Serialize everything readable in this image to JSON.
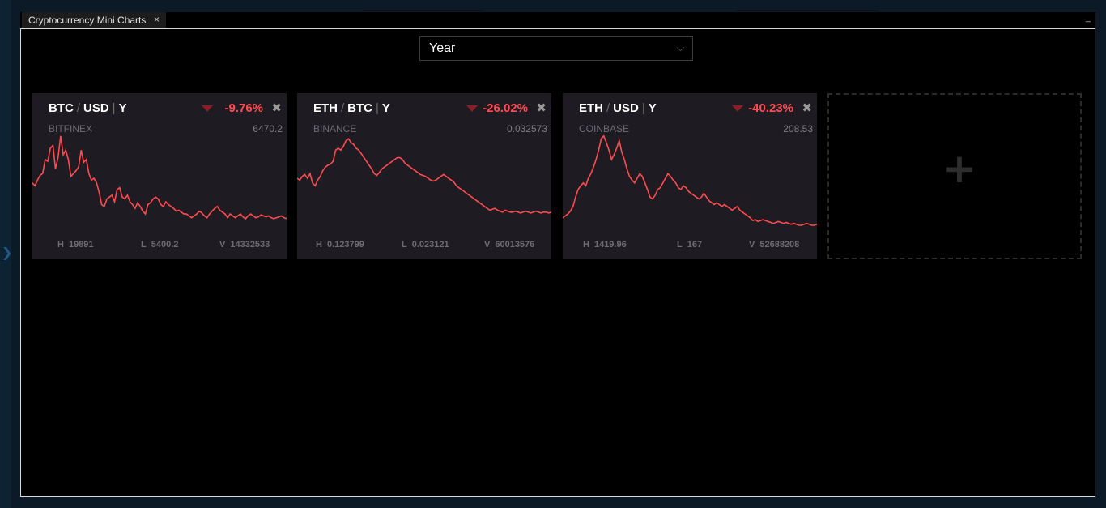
{
  "window": {
    "tab_title": "Cryptocurrency Mini Charts",
    "tab_close": "×",
    "minimize": "_"
  },
  "period": {
    "selected": "Year",
    "chevron": "⌵"
  },
  "cards": [
    {
      "base": "BTC",
      "sep": "/",
      "quote": "USD",
      "period_sep": "|",
      "period": "Y",
      "change": "-9.76%",
      "exchange": "BITFINEX",
      "price": "6470.2",
      "stats": [
        {
          "label": "H",
          "value": "19891"
        },
        {
          "label": "L",
          "value": "5400.2"
        },
        {
          "label": "V",
          "value": "14332533"
        }
      ],
      "series": [
        55,
        58,
        52,
        47,
        45,
        30,
        32,
        18,
        15,
        40,
        28,
        5,
        25,
        20,
        30,
        48,
        45,
        42,
        38,
        20,
        33,
        30,
        45,
        52,
        50,
        55,
        65,
        78,
        80,
        72,
        70,
        68,
        75,
        62,
        60,
        70,
        72,
        68,
        75,
        78,
        82,
        76,
        80,
        85,
        88,
        78,
        76,
        72,
        70,
        72,
        78,
        80,
        75,
        78,
        80,
        82,
        85,
        84,
        86,
        88,
        88,
        90,
        92,
        90,
        88,
        85,
        87,
        90,
        92,
        88,
        85,
        82,
        80,
        84,
        86,
        88,
        92,
        88,
        90,
        92,
        90,
        88,
        91,
        93,
        90,
        88,
        90,
        92,
        91,
        89,
        90,
        91,
        90,
        92,
        93,
        92,
        91,
        90,
        92,
        93
      ]
    },
    {
      "base": "ETH",
      "sep": "/",
      "quote": "BTC",
      "period_sep": "|",
      "period": "Y",
      "change": "-26.02%",
      "exchange": "BINANCE",
      "price": "0.032573",
      "stats": [
        {
          "label": "H",
          "value": "0.123799"
        },
        {
          "label": "L",
          "value": "0.023121"
        },
        {
          "label": "V",
          "value": "60013576"
        }
      ],
      "series": [
        50,
        52,
        48,
        46,
        50,
        45,
        55,
        58,
        52,
        48,
        42,
        38,
        36,
        35,
        32,
        20,
        18,
        20,
        16,
        10,
        8,
        12,
        14,
        18,
        20,
        24,
        28,
        32,
        36,
        40,
        45,
        47,
        44,
        40,
        38,
        36,
        34,
        32,
        30,
        28,
        28,
        30,
        34,
        36,
        38,
        40,
        42,
        44,
        46,
        47,
        48,
        50,
        52,
        53,
        52,
        50,
        48,
        46,
        48,
        50,
        52,
        54,
        58,
        60,
        62,
        64,
        66,
        68,
        70,
        72,
        74,
        76,
        78,
        80,
        82,
        84,
        83,
        82,
        84,
        85,
        86,
        84,
        85,
        86,
        86,
        85,
        86,
        87,
        86,
        85,
        86,
        87,
        86,
        85,
        86,
        87,
        86,
        86,
        87,
        86
      ]
    },
    {
      "base": "ETH",
      "sep": "/",
      "quote": "USD",
      "period_sep": "|",
      "period": "Y",
      "change": "-40.23%",
      "exchange": "COINBASE",
      "price": "208.53",
      "stats": [
        {
          "label": "H",
          "value": "1419.96"
        },
        {
          "label": "L",
          "value": "167"
        },
        {
          "label": "V",
          "value": "52688208"
        }
      ],
      "series": [
        92,
        90,
        88,
        85,
        80,
        70,
        62,
        58,
        55,
        58,
        50,
        45,
        38,
        30,
        20,
        8,
        5,
        12,
        20,
        30,
        25,
        18,
        10,
        22,
        30,
        40,
        48,
        52,
        55,
        50,
        45,
        48,
        55,
        62,
        70,
        72,
        68,
        62,
        60,
        55,
        50,
        45,
        48,
        52,
        55,
        60,
        62,
        58,
        60,
        64,
        66,
        68,
        70,
        72,
        70,
        66,
        70,
        74,
        76,
        78,
        76,
        78,
        80,
        78,
        80,
        82,
        84,
        82,
        80,
        84,
        86,
        88,
        90,
        92,
        95,
        94,
        96,
        95,
        94,
        95,
        96,
        97,
        98,
        97,
        96,
        97,
        98,
        97,
        98,
        99,
        98,
        99,
        100,
        100,
        99,
        98,
        99,
        100,
        100,
        99
      ]
    }
  ],
  "add": {
    "plus": "+"
  }
}
